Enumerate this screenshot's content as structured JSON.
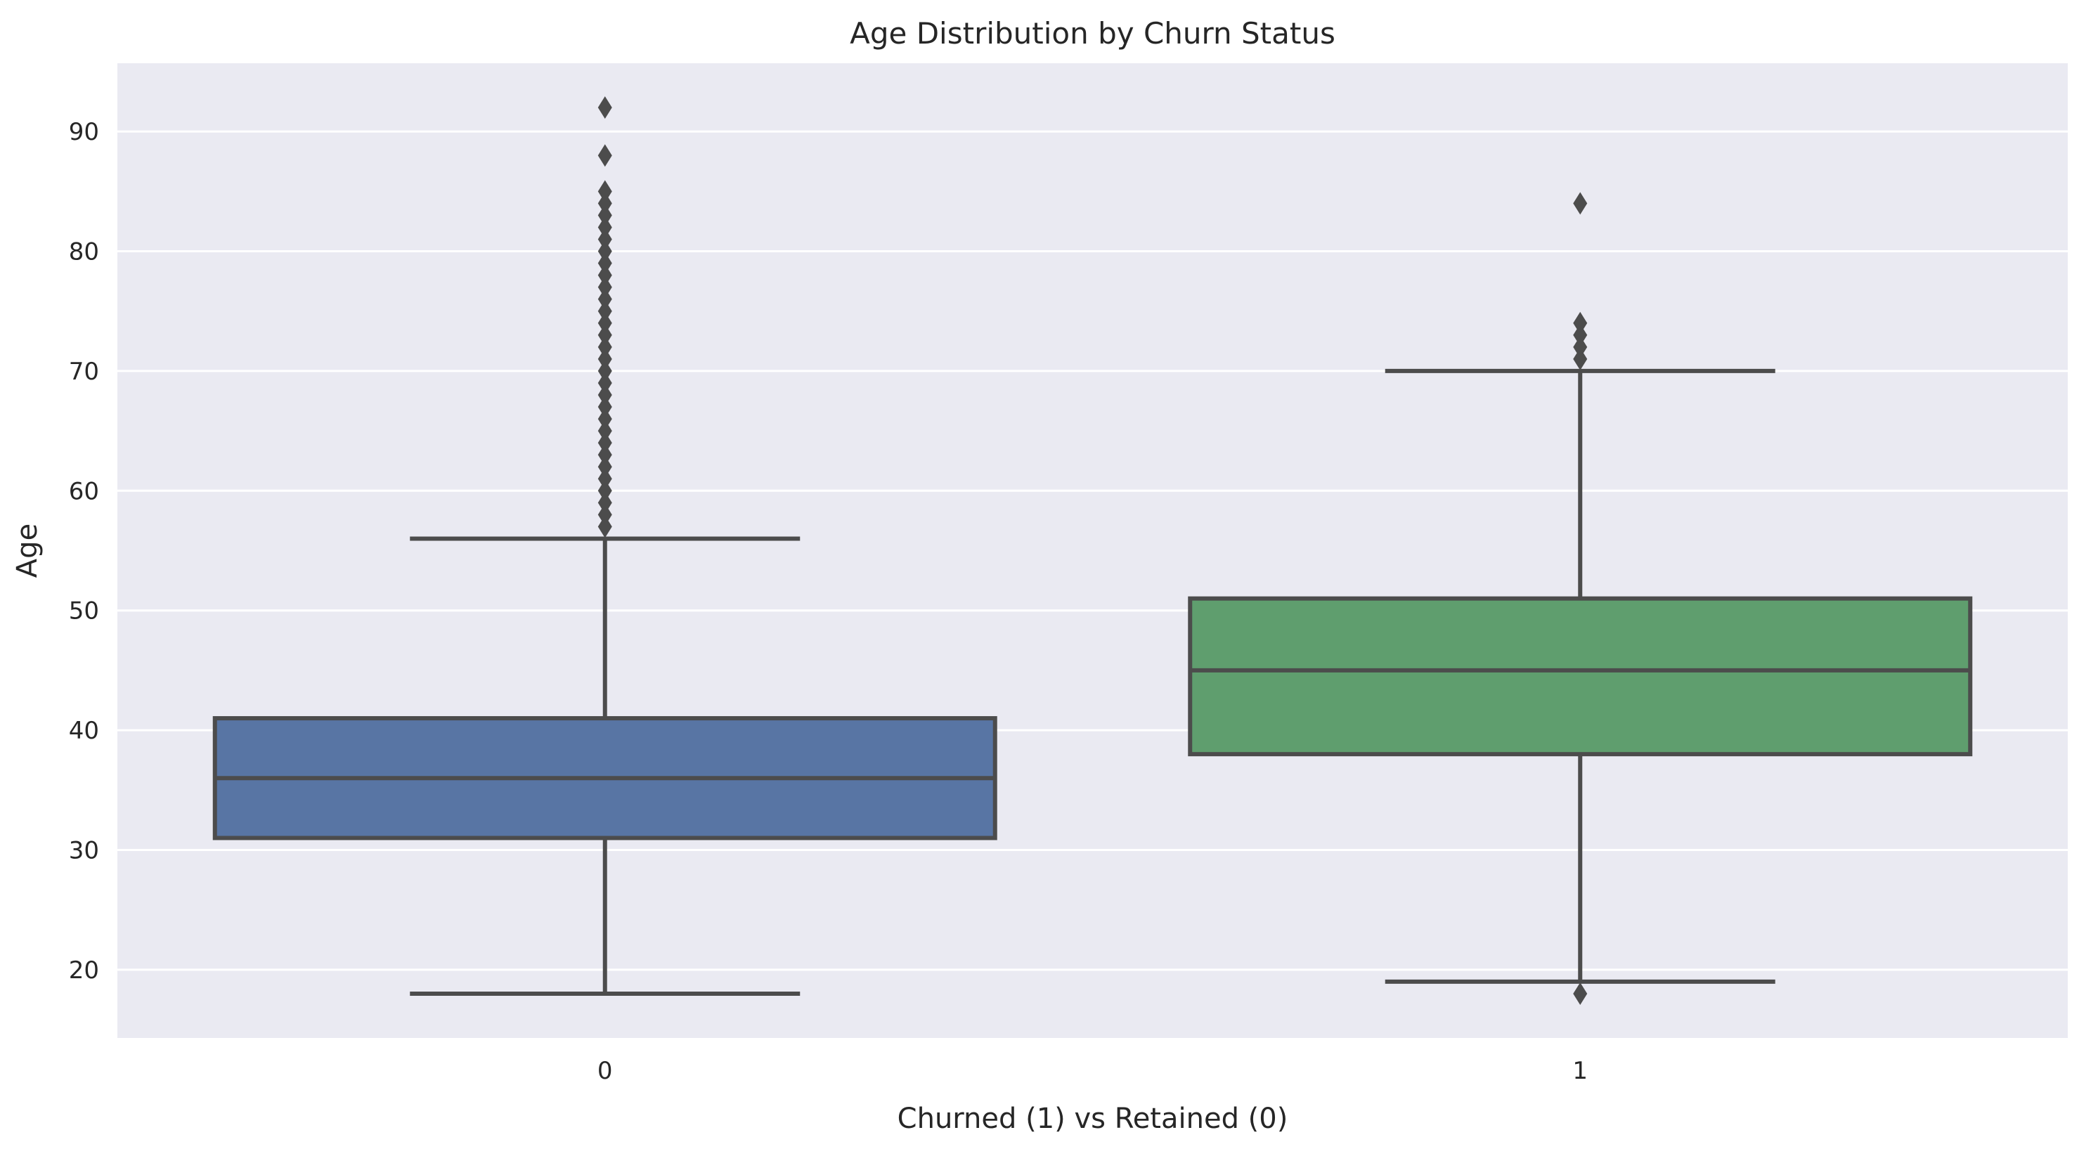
{
  "chart_data": {
    "type": "box",
    "title": "Age Distribution by Churn Status",
    "xlabel": "Churned (1) vs Retained (0)",
    "ylabel": "Age",
    "categories": [
      "0",
      "1"
    ],
    "ylim": [
      14.3,
      95.7
    ],
    "yticks": [
      20,
      30,
      40,
      50,
      60,
      70,
      80,
      90
    ],
    "grid": true,
    "background": "#eaeaf2",
    "boxes": [
      {
        "category": "0",
        "color": "#5875a4",
        "whisker_low": 18,
        "q1": 31,
        "median": 36,
        "q3": 41,
        "whisker_high": 56,
        "outliers": [
          57,
          58,
          59,
          60,
          61,
          62,
          63,
          64,
          65,
          66,
          67,
          68,
          69,
          70,
          71,
          72,
          73,
          74,
          75,
          76,
          77,
          78,
          79,
          80,
          81,
          82,
          83,
          84,
          85,
          88,
          92
        ]
      },
      {
        "category": "1",
        "color": "#5f9e6e",
        "whisker_low": 19,
        "q1": 38,
        "median": 45,
        "q3": 51,
        "whisker_high": 70,
        "outliers": [
          18,
          71,
          72,
          73,
          74,
          84
        ]
      }
    ]
  }
}
